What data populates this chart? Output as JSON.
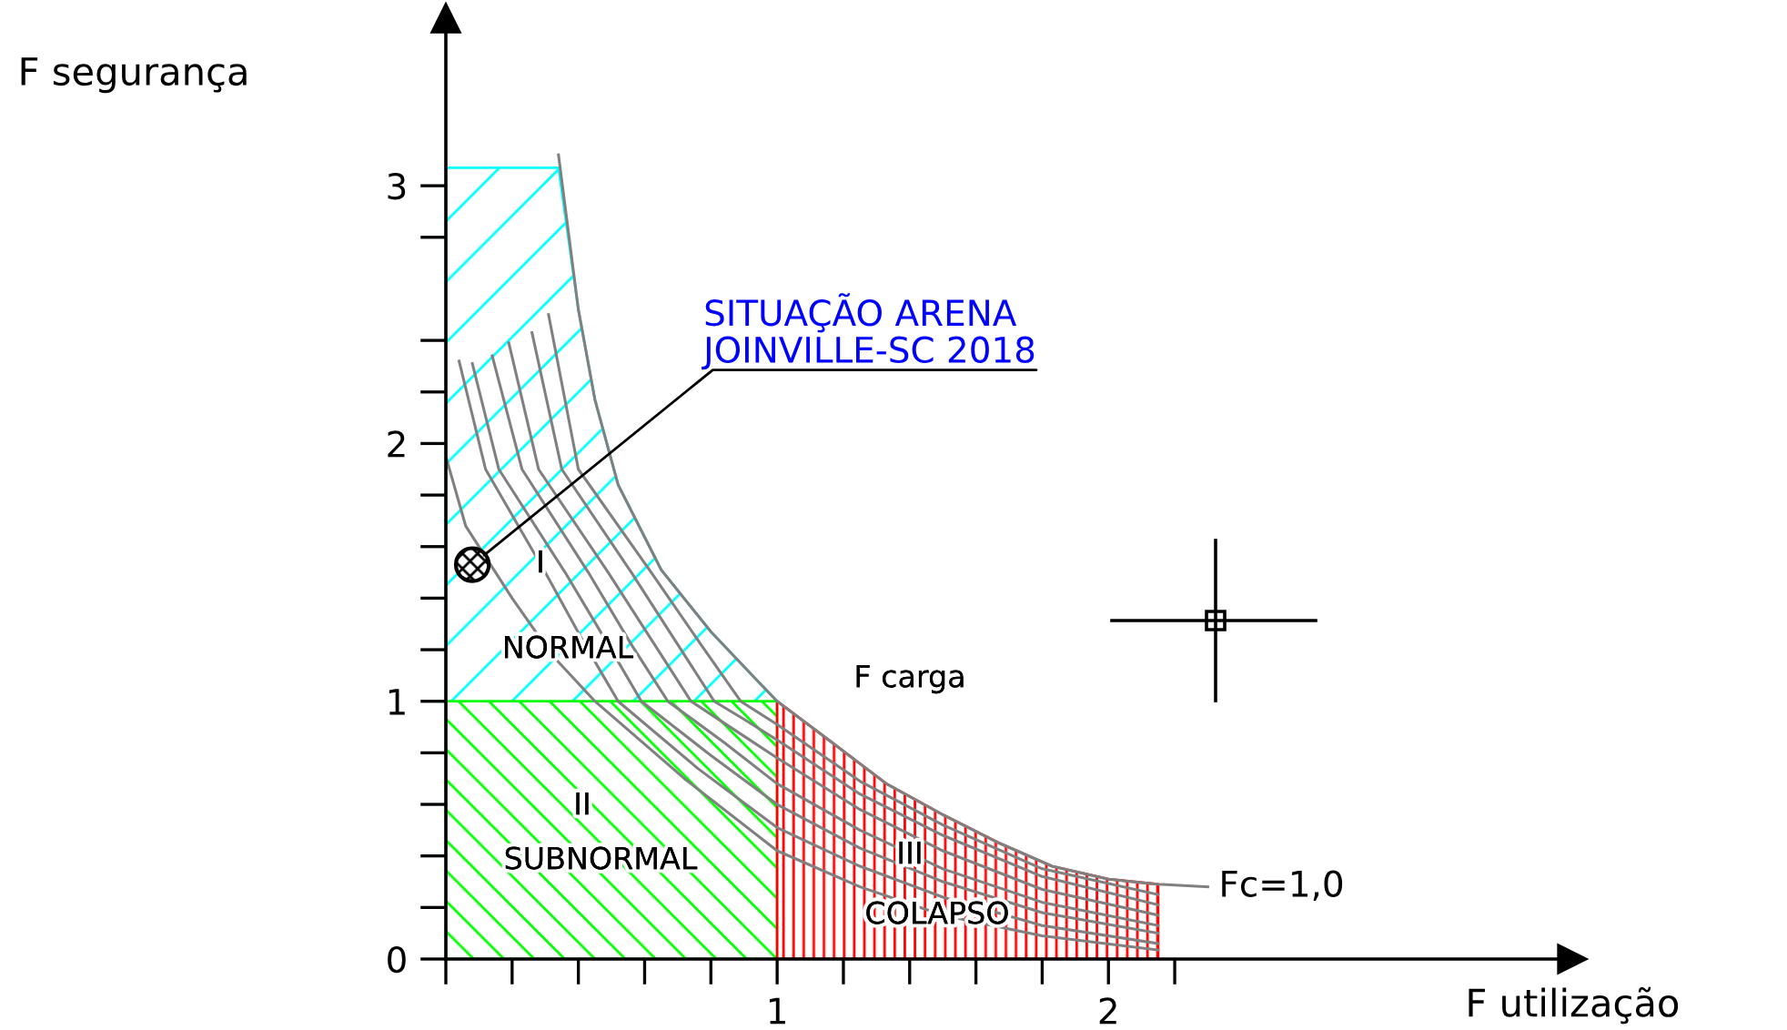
{
  "chart_data": {
    "type": "line",
    "xlabel": "F utilização",
    "ylabel": "F segurança",
    "xlim": [
      0,
      3.4
    ],
    "ylim": [
      0,
      3.65
    ],
    "xticks": [
      {
        "value": 0,
        "label": null
      },
      {
        "value": 0.2,
        "label": null
      },
      {
        "value": 0.4,
        "label": null
      },
      {
        "value": 0.6,
        "label": null
      },
      {
        "value": 0.8,
        "label": null
      },
      1,
      {
        "value": 1.2,
        "label": null
      },
      {
        "value": 1.4,
        "label": null
      },
      {
        "value": 1.6,
        "label": null
      },
      {
        "value": 1.8,
        "label": null
      },
      2,
      {
        "value": 2.2,
        "label": null
      }
    ],
    "yticks": [
      0,
      {
        "value": 0.2,
        "label": null
      },
      {
        "value": 0.4,
        "label": null
      },
      {
        "value": 0.6,
        "label": null
      },
      {
        "value": 0.8,
        "label": null
      },
      1,
      {
        "value": 1.2,
        "label": null
      },
      {
        "value": 1.4,
        "label": null
      },
      {
        "value": 1.6,
        "label": null
      },
      {
        "value": 1.8,
        "label": null
      },
      2,
      {
        "value": 2.2,
        "label": null
      },
      {
        "value": 2.4,
        "label": null
      },
      {
        "value": 2.8,
        "label": null
      },
      3
    ],
    "series": [
      {
        "type": "area",
        "color": "#00ffff",
        "x": [
          0,
          0.34,
          0.4,
          0.45,
          0.52,
          0.65,
          0.8,
          0.94,
          1.0
        ],
        "values": [
          3.07,
          3.07,
          2.52,
          2.17,
          1.84,
          1.51,
          1.27,
          1.08,
          1.0
        ]
      },
      {
        "type": "area",
        "color": "#00ff00",
        "x": [
          0,
          1
        ],
        "values": [
          1,
          1
        ]
      },
      {
        "type": "area",
        "color": "#ff0000",
        "x": [
          1.0,
          1.135,
          1.33,
          1.5,
          1.67,
          1.83,
          2.0,
          2.15
        ],
        "values": [
          1.0,
          0.87,
          0.68,
          0.56,
          0.45,
          0.36,
          0.31,
          0.29
        ]
      },
      {
        "color": "#808080",
        "x": [
          0,
          0.06,
          0.2,
          0.32,
          0.45,
          0.72,
          1.0,
          1.25,
          1.5,
          1.8,
          2.15
        ],
        "values": [
          1.95,
          1.68,
          1.4,
          1.18,
          1.0,
          0.7,
          0.42,
          0.28,
          0.17,
          0.09,
          0.035
        ]
      },
      {
        "color": "#808080",
        "x": [
          0.04,
          0.12,
          0.3,
          0.42,
          0.52,
          0.76,
          1.0,
          1.25,
          1.5,
          1.8,
          2.15
        ],
        "values": [
          2.32,
          1.9,
          1.5,
          1.22,
          1.0,
          0.74,
          0.51,
          0.36,
          0.24,
          0.13,
          0.06
        ]
      },
      {
        "color": "#808080",
        "x": [
          0.08,
          0.16,
          0.36,
          0.49,
          0.59,
          0.8,
          1.0,
          1.25,
          1.5,
          1.8,
          2.15
        ],
        "values": [
          2.31,
          1.9,
          1.5,
          1.22,
          1.0,
          0.79,
          0.6,
          0.43,
          0.3,
          0.18,
          0.1
        ]
      },
      {
        "color": "#808080",
        "x": [
          0.14,
          0.23,
          0.43,
          0.56,
          0.67,
          0.84,
          1.0,
          1.25,
          1.5,
          1.8,
          2.15
        ],
        "values": [
          2.34,
          1.9,
          1.5,
          1.22,
          1.0,
          0.84,
          0.68,
          0.5,
          0.35,
          0.22,
          0.13
        ]
      },
      {
        "color": "#808080",
        "x": [
          0.19,
          0.28,
          0.49,
          0.63,
          0.74,
          0.87,
          1.0,
          1.25,
          1.5,
          1.8,
          2.15
        ],
        "values": [
          2.39,
          1.9,
          1.5,
          1.22,
          1.0,
          0.89,
          0.78,
          0.58,
          0.42,
          0.27,
          0.17
        ]
      },
      {
        "color": "#808080",
        "x": [
          0.26,
          0.35,
          0.56,
          0.7,
          0.81,
          0.9,
          1.0,
          1.25,
          1.5,
          1.8,
          2.15
        ],
        "values": [
          2.43,
          1.9,
          1.5,
          1.22,
          1.0,
          0.93,
          0.85,
          0.64,
          0.48,
          0.32,
          0.21
        ]
      },
      {
        "color": "#808080",
        "x": [
          0.31,
          0.4,
          0.62,
          0.77,
          0.89,
          1.0,
          1.25,
          1.5,
          1.8,
          2.15
        ],
        "values": [
          2.5,
          1.9,
          1.5,
          1.22,
          1.0,
          0.91,
          0.69,
          0.52,
          0.35,
          0.25
        ]
      },
      {
        "name": "Fc=1,0",
        "color": "#808080",
        "x": [
          0.34,
          0.4,
          0.45,
          0.52,
          0.65,
          0.8,
          0.94,
          1.0,
          1.135,
          1.33,
          1.5,
          1.67,
          1.83,
          2.0,
          2.15,
          2.3
        ],
        "values": [
          3.12,
          2.52,
          2.17,
          1.84,
          1.51,
          1.27,
          1.08,
          1.0,
          0.87,
          0.68,
          0.56,
          0.45,
          0.36,
          0.31,
          0.29,
          0.28
        ]
      },
      {
        "type": "scatter",
        "name": "SITUAÇÃO ARENA\nJOINVILLE-SC 2018",
        "color": "#000000",
        "marker": "circle",
        "x": [
          0.08
        ],
        "values": [
          1.53
        ]
      }
    ],
    "annotations": [
      "I",
      "NORMAL",
      "F carga",
      "II",
      "SUBNORMAL",
      "III",
      "COLAPSO"
    ]
  }
}
